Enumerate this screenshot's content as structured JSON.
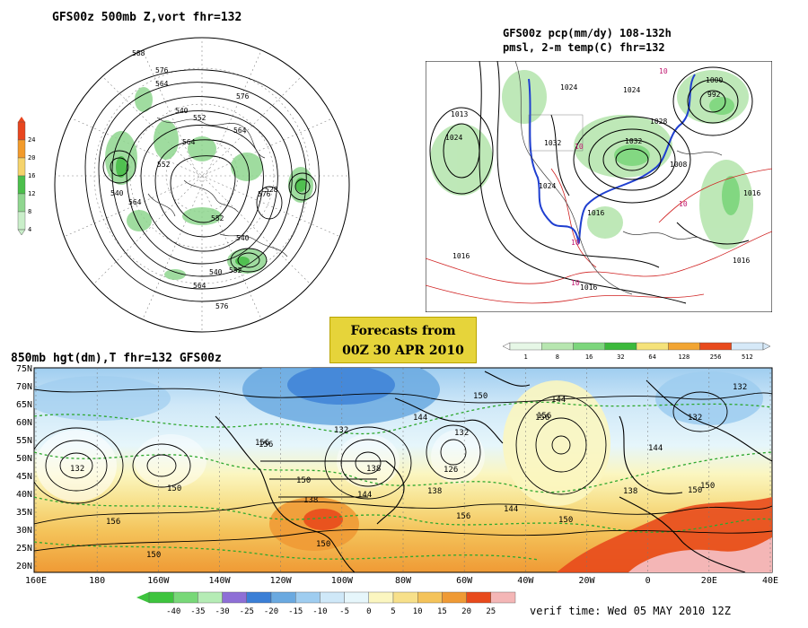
{
  "panel_polar": {
    "title": "GFS00z   500mb Z,vort    fhr=132",
    "contour_labels": [
      "588",
      "576",
      "564",
      "552",
      "540",
      "564",
      "576",
      "552",
      "540",
      "564",
      "576",
      "552",
      "540",
      "564",
      "576",
      "540",
      "528",
      "564",
      "552"
    ],
    "colorbar": {
      "ticks": [
        "24",
        "20",
        "16",
        "12",
        "8",
        "4"
      ],
      "colors": [
        "#e8451e",
        "#f29a2a",
        "#f5d36b",
        "#4bbf4b",
        "#8fd68f",
        "#c9eec9"
      ]
    }
  },
  "panel_na": {
    "title_line1": "GFS00z pcp(mm/dy) 108-132h",
    "title_line2": "pmsl, 2-m temp(C)  fhr=132",
    "contour_labels": [
      "1013",
      "1024",
      "1032",
      "1024",
      "1032",
      "1024",
      "1016",
      "1016",
      "1000",
      "992",
      "1008",
      "1016",
      "1016",
      "1016",
      "1028",
      "1024"
    ],
    "temp_labels": [
      "10",
      "10",
      "10",
      "10",
      "10"
    ],
    "colorbar": {
      "ticks": [
        "1",
        "8",
        "16",
        "32",
        "64",
        "128",
        "256",
        "512"
      ],
      "colors": [
        "#e6f7e6",
        "#b7e6b0",
        "#7cd67c",
        "#3cb93c",
        "#f5e27a",
        "#f2a533",
        "#e84a1c",
        "#d6e9f8"
      ]
    }
  },
  "stamp": {
    "line1": "Forecasts from",
    "line2": "00Z 30 APR 2010"
  },
  "panel_850": {
    "title": "850mb hgt(dm),T   fhr=132 GFS00z",
    "lat_labels": [
      "75N",
      "70N",
      "65N",
      "60N",
      "55N",
      "50N",
      "45N",
      "40N",
      "35N",
      "30N",
      "25N",
      "20N"
    ],
    "lon_labels": [
      "160E",
      "180",
      "160W",
      "140W",
      "120W",
      "100W",
      "80W",
      "60W",
      "40W",
      "20W",
      "0",
      "20E",
      "40E"
    ],
    "contour_labels": [
      "132",
      "150",
      "156",
      "150",
      "150",
      "138",
      "144",
      "132",
      "144",
      "156",
      "150",
      "144",
      "132",
      "144",
      "150",
      "138",
      "156",
      "156",
      "144",
      "150",
      "138",
      "150",
      "156",
      "132",
      "150",
      "156",
      "126",
      "138",
      "132"
    ],
    "colorbar": {
      "ticks": [
        "-40",
        "-35",
        "-30",
        "-25",
        "-20",
        "-15",
        "-10",
        "-5",
        "0",
        "5",
        "10",
        "15",
        "20",
        "25"
      ],
      "colors": [
        "#3ec43e",
        "#78d878",
        "#b5ecb5",
        "#8e6fd6",
        "#3b7fd6",
        "#6aa9e0",
        "#9fcdf0",
        "#cfe8f8",
        "#e6f6fb",
        "#fbf6c0",
        "#f7e08a",
        "#f4c35a",
        "#ef9a35",
        "#e84a1c",
        "#f4b6b6"
      ]
    }
  },
  "verif": "verif time: Wed 05 MAY 2010 12Z"
}
